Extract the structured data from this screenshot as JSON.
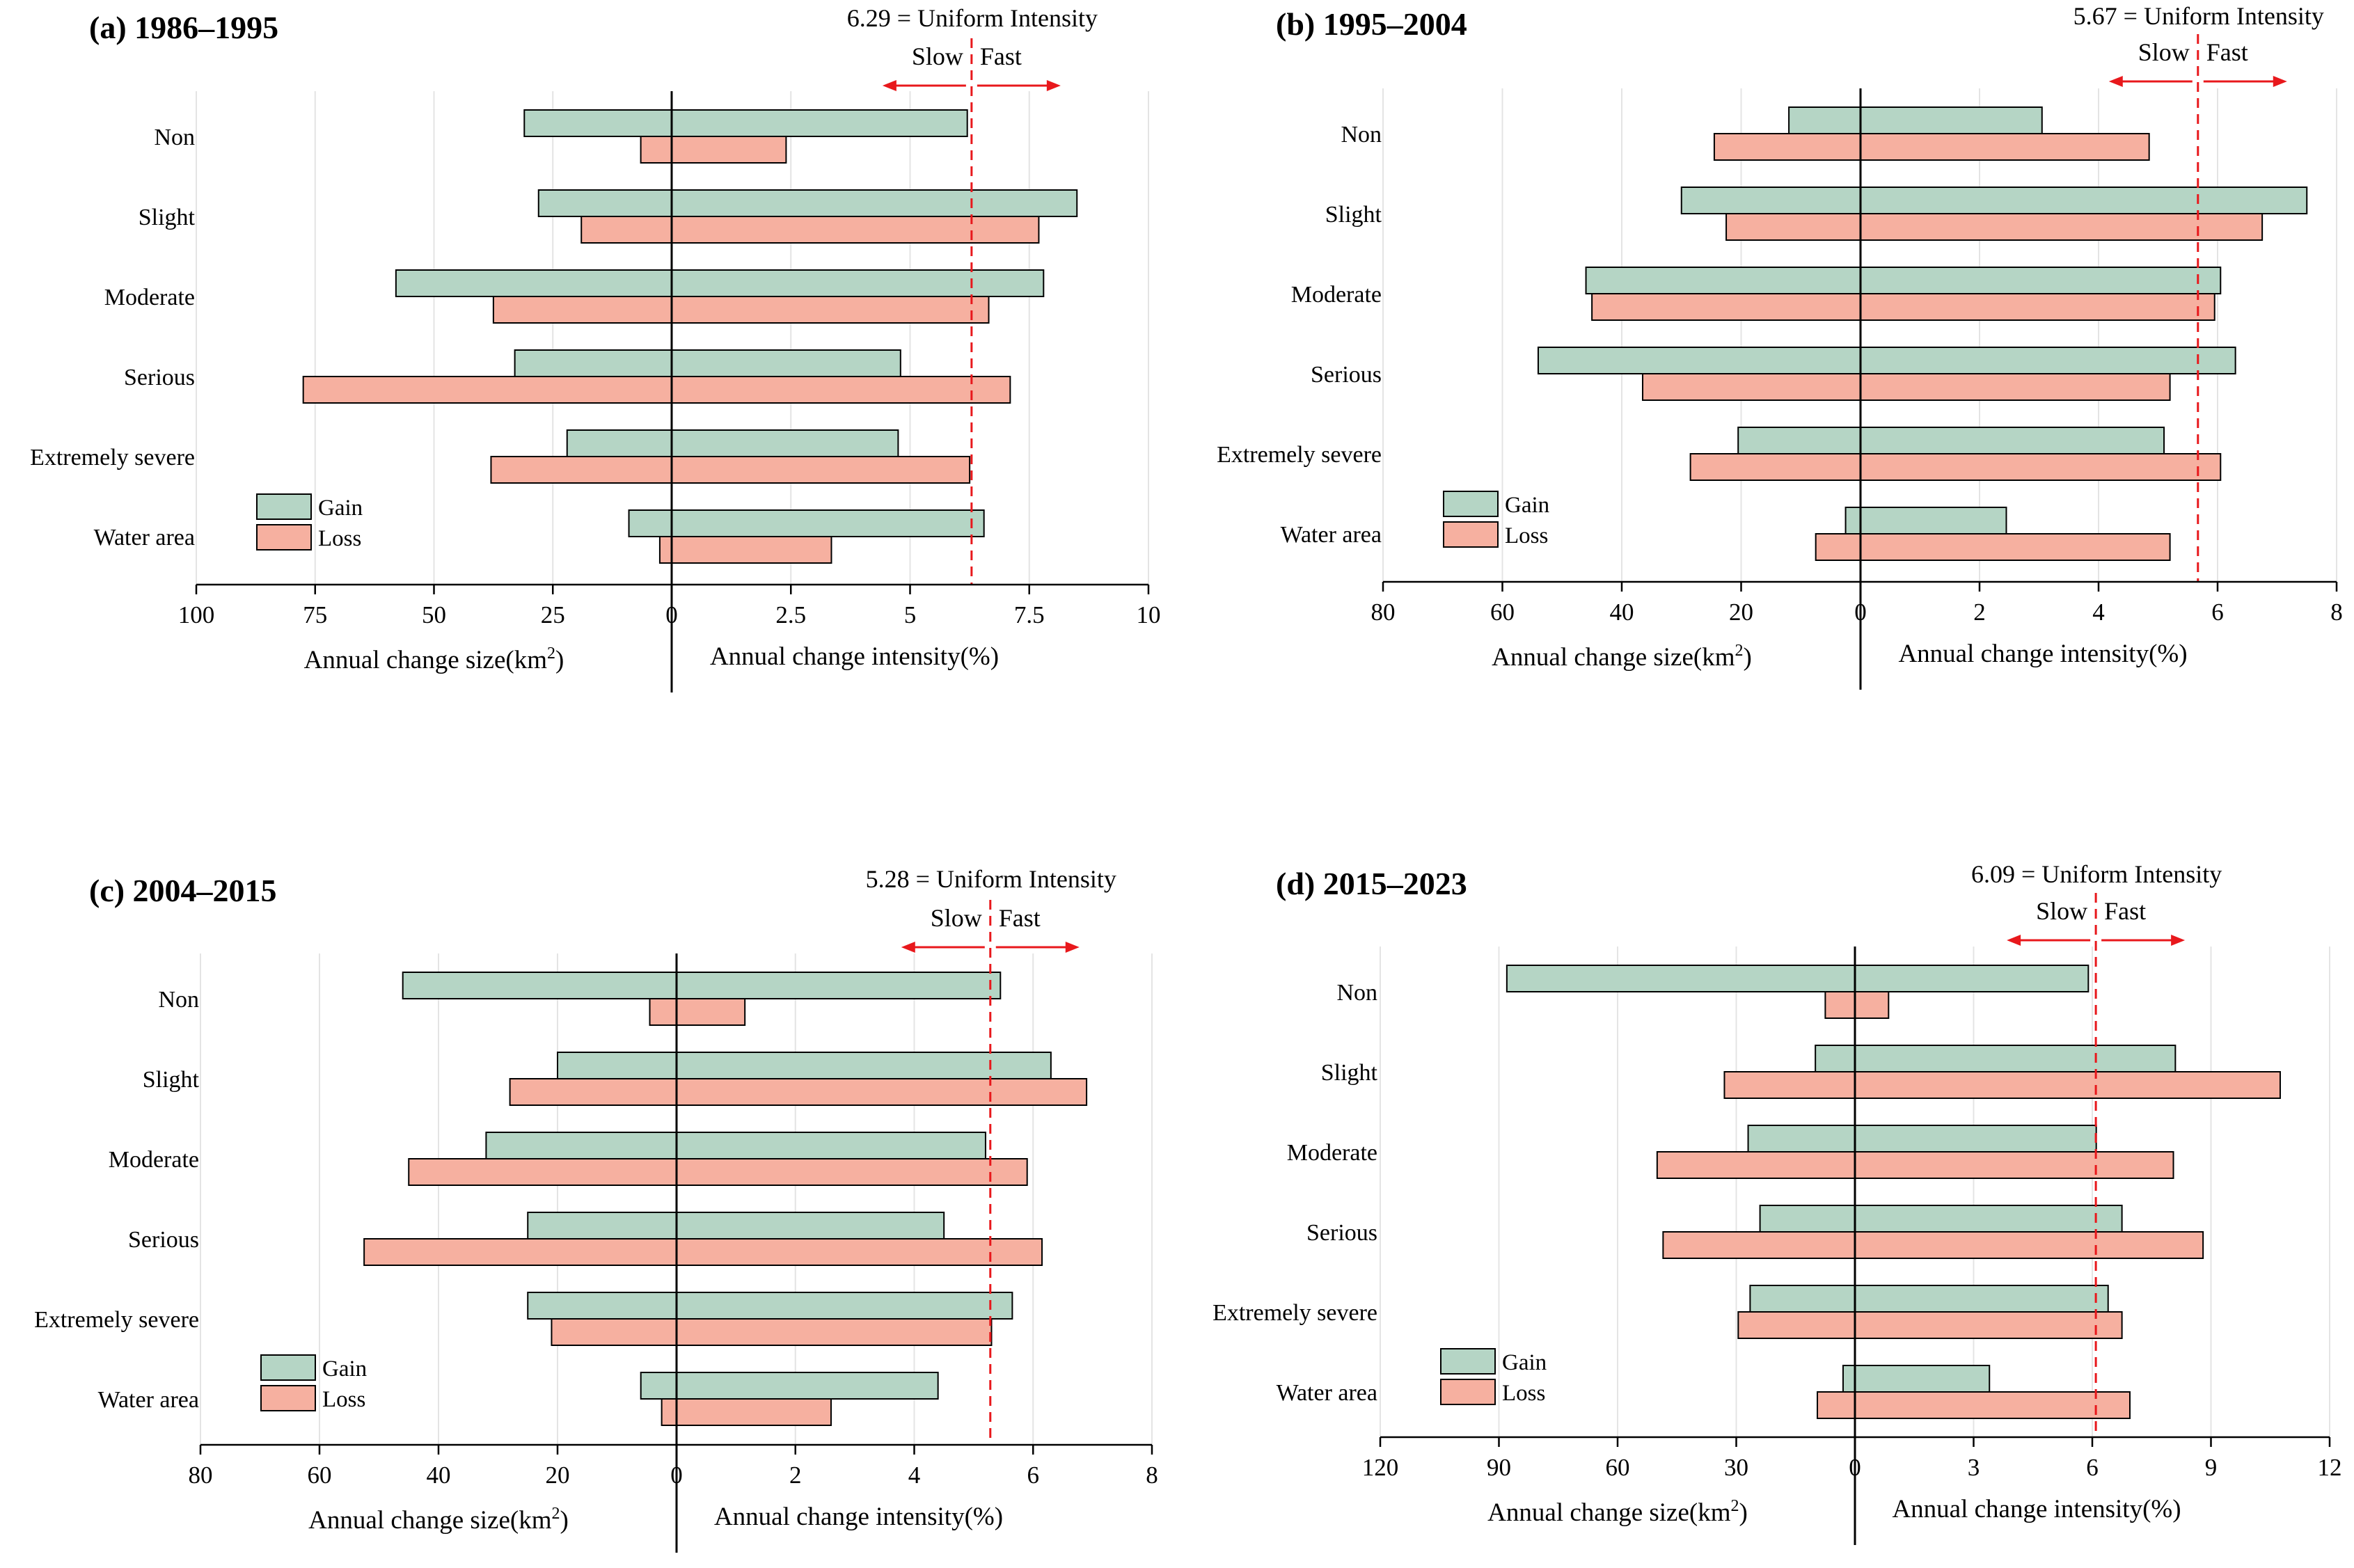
{
  "colors": {
    "gain": "#b5d5c5",
    "loss": "#f6b0a0",
    "bar_stroke": "#000000",
    "uniform_line": "#e8181c",
    "grid": "#e4e4e4"
  },
  "labels": {
    "left_axis_title": "Annual change size(km",
    "left_axis_unit_sup": "2",
    "left_axis_title_end": ")",
    "right_axis_title": "Annual change intensity(%)",
    "slow": "Slow",
    "fast": "Fast",
    "legend_gain": "Gain",
    "legend_loss": "Loss"
  },
  "chart_data": [
    {
      "type": "bar",
      "title": "(a) 1986–1995",
      "categories": [
        "Non",
        "Slight",
        "Moderate",
        "Serious",
        "Extremely severe",
        "Water area"
      ],
      "uniform_intensity": 6.29,
      "uniform_label": "6.29 = Uniform Intensity",
      "left_axis": {
        "label": "Annual change size(km2)",
        "max": 100,
        "ticks": [
          100,
          75,
          50,
          25,
          0
        ],
        "tick_labels": [
          "100",
          "75",
          "50",
          "25",
          "0"
        ]
      },
      "right_axis": {
        "label": "Annual change intensity(%)",
        "max": 10,
        "ticks": [
          2.5,
          5,
          7.5,
          10
        ],
        "tick_labels": [
          "2.5",
          "5",
          "7.5",
          "10"
        ]
      },
      "series": [
        {
          "name": "Gain",
          "size": [
            31,
            28,
            58,
            33,
            22,
            9
          ],
          "intensity": [
            6.2,
            8.5,
            7.8,
            4.8,
            4.75,
            6.55
          ]
        },
        {
          "name": "Loss",
          "size": [
            6.5,
            19,
            37.5,
            77.5,
            38,
            2.5
          ],
          "intensity": [
            2.4,
            7.7,
            6.65,
            7.1,
            6.25,
            3.35
          ]
        }
      ]
    },
    {
      "type": "bar",
      "title": "(b) 1995–2004",
      "categories": [
        "Non",
        "Slight",
        "Moderate",
        "Serious",
        "Extremely severe",
        "Water area"
      ],
      "uniform_intensity": 5.67,
      "uniform_label": "5.67 = Uniform Intensity",
      "left_axis": {
        "label": "Annual change size(km2)",
        "max": 80,
        "ticks": [
          80,
          60,
          40,
          20,
          0
        ],
        "tick_labels": [
          "80",
          "60",
          "40",
          "20",
          "0"
        ]
      },
      "right_axis": {
        "label": "Annual change intensity(%)",
        "max": 8,
        "ticks": [
          2,
          4,
          6,
          8
        ],
        "tick_labels": [
          "2",
          "4",
          "6",
          "8"
        ]
      },
      "series": [
        {
          "name": "Gain",
          "size": [
            12,
            30,
            46,
            54,
            20.5,
            2.5
          ],
          "intensity": [
            3.05,
            7.5,
            6.05,
            6.3,
            5.1,
            2.45
          ]
        },
        {
          "name": "Loss",
          "size": [
            24.5,
            22.5,
            45,
            36.5,
            28.5,
            7.5
          ],
          "intensity": [
            4.85,
            6.75,
            5.95,
            5.2,
            6.05,
            5.2
          ]
        }
      ]
    },
    {
      "type": "bar",
      "title": "(c) 2004–2015",
      "categories": [
        "Non",
        "Slight",
        "Moderate",
        "Serious",
        "Extremely severe",
        "Water area"
      ],
      "uniform_intensity": 5.28,
      "uniform_label": "5.28 = Uniform Intensity",
      "left_axis": {
        "label": "Annual change size(km2)",
        "max": 80,
        "ticks": [
          80,
          60,
          40,
          20,
          0
        ],
        "tick_labels": [
          "80",
          "60",
          "40",
          "20",
          "0"
        ]
      },
      "right_axis": {
        "label": "Annual change intensity(%)",
        "max": 8,
        "ticks": [
          2,
          4,
          6,
          8
        ],
        "tick_labels": [
          "2",
          "4",
          "6",
          "8"
        ]
      },
      "series": [
        {
          "name": "Gain",
          "size": [
            46,
            20,
            32,
            25,
            25,
            6
          ],
          "intensity": [
            5.45,
            6.3,
            5.2,
            4.5,
            5.65,
            4.4
          ]
        },
        {
          "name": "Loss",
          "size": [
            4.5,
            28,
            45,
            52.5,
            21,
            2.5
          ],
          "intensity": [
            1.15,
            6.9,
            5.9,
            6.15,
            5.3,
            2.6
          ]
        }
      ]
    },
    {
      "type": "bar",
      "title": "(d) 2015–2023",
      "categories": [
        "Non",
        "Slight",
        "Moderate",
        "Serious",
        "Extremely severe",
        "Water area"
      ],
      "uniform_intensity": 6.09,
      "uniform_label": "6.09 = Uniform Intensity",
      "left_axis": {
        "label": "Annual change size(km2)",
        "max": 120,
        "ticks": [
          120,
          90,
          60,
          30,
          0
        ],
        "tick_labels": [
          "120",
          "90",
          "60",
          "30",
          "0"
        ]
      },
      "right_axis": {
        "label": "Annual change intensity(%)",
        "max": 12,
        "ticks": [
          3,
          6,
          9,
          12
        ],
        "tick_labels": [
          "3",
          "6",
          "9",
          "12"
        ]
      },
      "series": [
        {
          "name": "Gain",
          "size": [
            88,
            10,
            27,
            24,
            26.5,
            3
          ],
          "intensity": [
            5.9,
            8.1,
            6.1,
            6.75,
            6.4,
            3.4
          ]
        },
        {
          "name": "Loss",
          "size": [
            7.5,
            33,
            50,
            48.5,
            29.5,
            9.5
          ],
          "intensity": [
            0.85,
            10.75,
            8.05,
            8.8,
            6.75,
            6.95
          ]
        }
      ]
    }
  ]
}
